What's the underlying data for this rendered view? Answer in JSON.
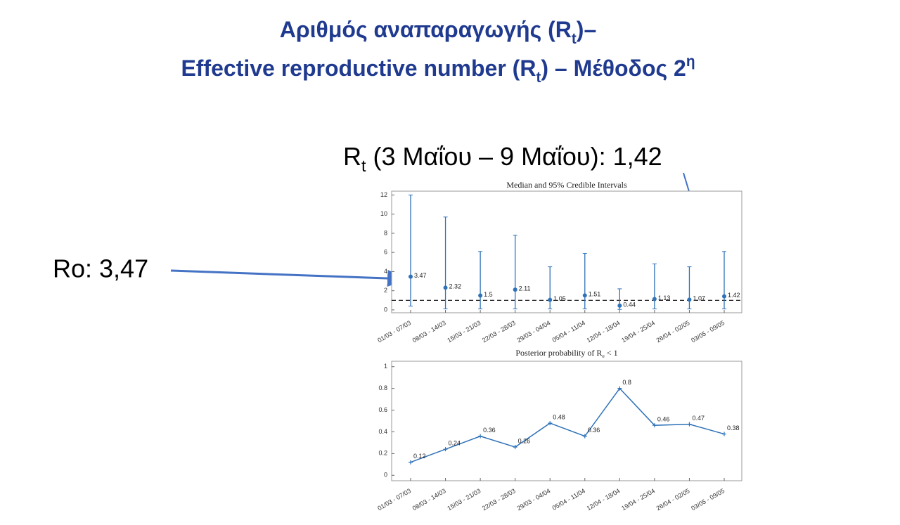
{
  "slide": {
    "title_line1": [
      "Αριθμός αναπαραγωγής (R",
      "t",
      ")–"
    ],
    "title_line2": [
      "Effective reproductive number (R",
      "t",
      ") – Μέθοδος 2",
      "η"
    ],
    "annotation_rt": [
      "R",
      "t",
      " (3 Μαΐου – 9 Μαΐου): 1,42"
    ],
    "annotation_ro": "Ro: 3,47"
  },
  "chart_data": [
    {
      "type": "errorbar",
      "title": "Median and 95% Credible Intervals",
      "categories": [
        "01/03 - 07/03",
        "08/03 - 14/03",
        "15/03 - 21/03",
        "22/03 - 28/03",
        "29/03 - 04/04",
        "05/04 - 11/04",
        "12/04 - 18/04",
        "19/04 - 25/04",
        "26/04 - 02/05",
        "03/05 - 09/05"
      ],
      "values": [
        3.47,
        2.32,
        1.5,
        2.11,
        1.05,
        1.51,
        0.44,
        1.13,
        1.07,
        1.42
      ],
      "lower": [
        0.4,
        0.1,
        0.1,
        0.1,
        0.1,
        0.1,
        0.05,
        0.1,
        0.1,
        0.1
      ],
      "upper": [
        12,
        9.7,
        6.1,
        7.8,
        4.5,
        5.9,
        2.2,
        4.8,
        4.5,
        6.1
      ],
      "color": "#2f72b8",
      "reference_line": 1,
      "ylim": [
        -0.3,
        12.4
      ],
      "yticks": [
        0,
        2,
        4,
        6,
        8,
        10,
        12
      ]
    },
    {
      "type": "line",
      "title": [
        "Posterior probability of ",
        "R",
        "e",
        " < 1"
      ],
      "categories": [
        "01/03 - 07/03",
        "08/03 - 14/03",
        "15/03 - 21/03",
        "22/03 - 28/03",
        "29/03 - 04/04",
        "05/04 - 11/04",
        "12/04 - 18/04",
        "19/04 - 25/04",
        "26/04 - 02/05",
        "03/05 - 09/05"
      ],
      "values": [
        0.12,
        0.24,
        0.36,
        0.26,
        0.48,
        0.36,
        0.8,
        0.46,
        0.47,
        0.38
      ],
      "color": "#2f72b8",
      "ylim": [
        -0.05,
        1.05
      ],
      "yticks": [
        0,
        0.2,
        0.4,
        0.6,
        0.8,
        1
      ]
    }
  ]
}
